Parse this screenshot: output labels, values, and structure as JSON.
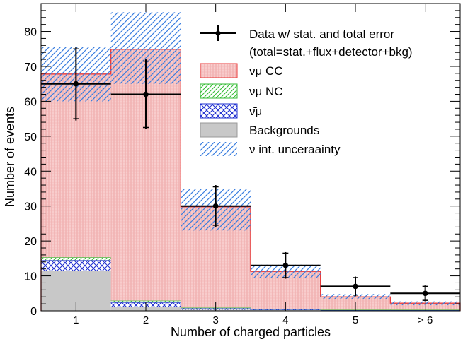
{
  "chart_data": {
    "type": "bar",
    "stacked": true,
    "title": "",
    "xlabel": "Number of charged particles",
    "ylabel": "Number of events",
    "categories": [
      "1",
      "2",
      "3",
      "4",
      "5",
      "> 6"
    ],
    "ylim": [
      0,
      88
    ],
    "yticks": [
      0,
      10,
      20,
      30,
      40,
      50,
      60,
      70,
      80
    ],
    "series": [
      {
        "name": "Backgrounds",
        "values": [
          11.5,
          1.2,
          0.3,
          0.2,
          0.1,
          0.1
        ],
        "color": "#c8c8c8"
      },
      {
        "name": "ν̄μ",
        "values": [
          3.0,
          1.2,
          0.4,
          0.2,
          0.1,
          0.1
        ],
        "color": "#1f2fd0"
      },
      {
        "name": "νμ NC",
        "values": [
          0.8,
          0.5,
          0.2,
          0.1,
          0.1,
          0.1
        ],
        "color": "#33bb33"
      },
      {
        "name": "νμ CC",
        "values": [
          52.5,
          72.0,
          28.9,
          10.8,
          3.7,
          1.9
        ],
        "color": "#e83a3a"
      }
    ],
    "uncertainty": {
      "name": "ν int. unceraainty",
      "totals": [
        67.8,
        74.9,
        29.8,
        11.3,
        4.0,
        2.2
      ],
      "low": [
        60,
        65,
        23,
        9.5,
        3.3,
        1.6
      ],
      "high": [
        75.5,
        85.5,
        35,
        13.2,
        4.8,
        2.7
      ],
      "color": "#3a7ee0"
    },
    "data": {
      "name": "Data w/ stat. and total error",
      "note": "(total=stat.+flux+detector+bkg)",
      "values": [
        65,
        62,
        30,
        13,
        7,
        5
      ],
      "stat_err": [
        10,
        9.5,
        5.5,
        3.5,
        2.5,
        2.0
      ],
      "total_err": [
        10.5,
        10.0,
        6.0,
        3.8,
        2.8,
        2.3
      ]
    },
    "legend_position": "top-right",
    "grid": false
  }
}
